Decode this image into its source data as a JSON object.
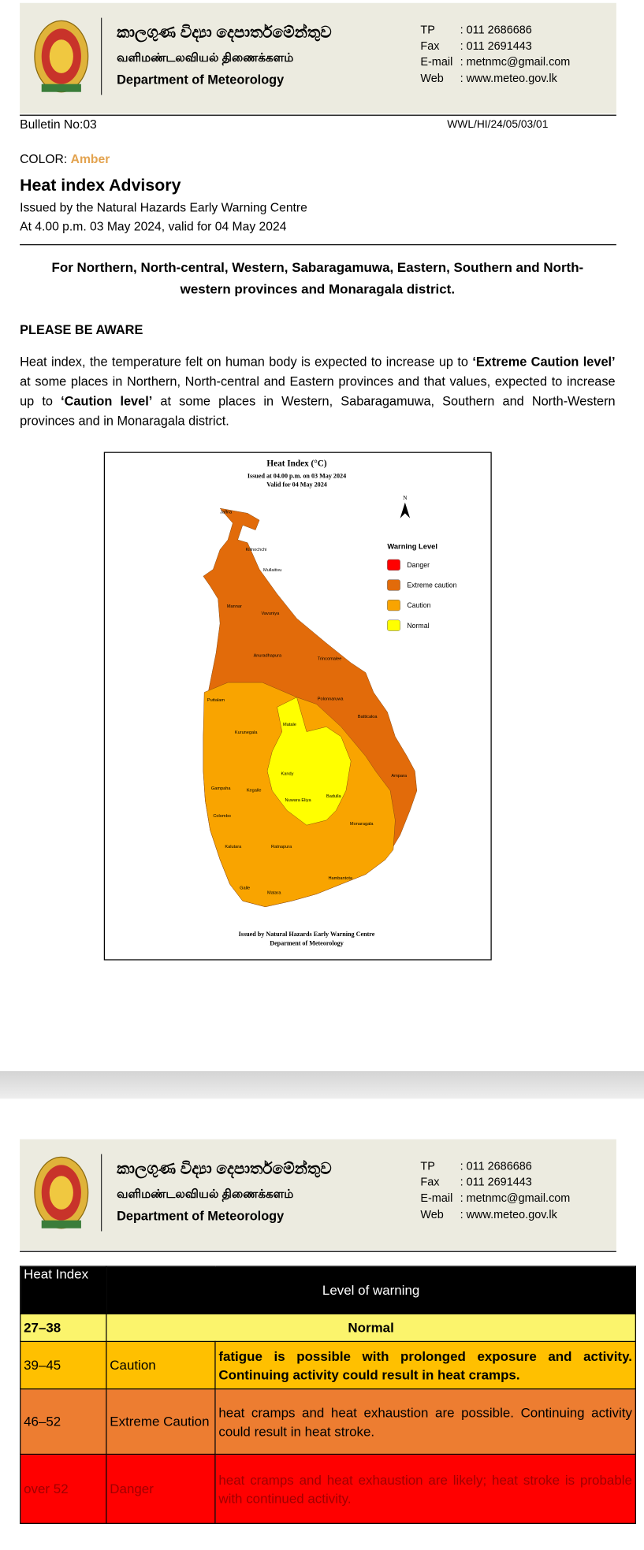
{
  "header": {
    "sinhala": "කාලගුණ විද්‍යා දෙපාර්තමේන්තුව",
    "tamil": "வளிமண்டலவியல் திணைக்களம்",
    "english": "Department of Meteorology",
    "contacts": [
      {
        "label": "TP",
        "value": ": 011 2686686"
      },
      {
        "label": "Fax",
        "value": ": 011 2691443"
      },
      {
        "label": "E-mail",
        "value": ": metnmc@gmail.com"
      },
      {
        "label": "Web",
        "value": ": www.meteo.gov.lk"
      }
    ]
  },
  "bulletin": {
    "number": "Bulletin No:03",
    "reference": "WWL/HI/24/05/03/01",
    "color_label": "COLOR:",
    "color_value": "Amber",
    "title": "Heat index Advisory",
    "issued_by": "Issued by the Natural Hazards Early Warning Centre",
    "issued_at": "At 4.00 p.m. 03 May 2024, valid for 04 May 2024",
    "regions": "For Northern, North-central, Western, Sabaragamuwa, Eastern, Southern and North-western provinces and Monaragala district.",
    "aware": "PLEASE BE AWARE",
    "body": [
      "Heat index, the temperature felt on human body is expected to increase up to ",
      "‘Extreme Caution level’",
      " at some places in Northern, North-central and Eastern provinces and that values, expected to increase up to ",
      "‘Caution level’",
      " at some places in Western, Sabaragamuwa, Southern and North-Western provinces and in Monaragala district."
    ]
  },
  "map": {
    "title": "Heat Index (°C)",
    "issued": "Issued at 04.00 p.m. on 03 May 2024",
    "valid": "Valid for 04 May 2024",
    "north": "N",
    "legend_title": "Warning Level",
    "legend": [
      {
        "label": "Danger",
        "color": "#ff0000"
      },
      {
        "label": "Extreme caution",
        "color": "#e26b0a"
      },
      {
        "label": "Caution",
        "color": "#f9a400"
      },
      {
        "label": "Normal",
        "color": "#ffff00"
      }
    ],
    "districts": [
      "Jaffna",
      "Kilinochchi",
      "Mullaitivu",
      "Mannar",
      "Vavuniya",
      "Trincomalee",
      "Anuradhapura",
      "Puttalam",
      "Polonnaruwa",
      "Matale",
      "Batticaloa",
      "Kurunegala",
      "Kandy",
      "Ampara",
      "Gampaha",
      "Kegalle",
      "Nuwara Eliya",
      "Badulla",
      "Colombo",
      "Monaragala",
      "Kalutara",
      "Ratnapura",
      "Hambantota",
      "Galle",
      "Matara"
    ],
    "footer": [
      "Issued by Natural Hazards Early Warning Centre",
      "Deparment of Meteorology"
    ]
  },
  "table": {
    "header": [
      "Heat Index",
      "Level of warning"
    ],
    "rows": [
      {
        "range": "27–38",
        "level": "Normal",
        "color": "#fbf46c"
      },
      {
        "range": "39–45",
        "level": "Caution",
        "description": "fatigue is possible with prolonged exposure and activity. Continuing activity could result in heat cramps.",
        "color": "#ffc000"
      },
      {
        "range": "46–52",
        "level": "Extreme Caution",
        "description": "heat cramps and heat exhaustion are possible. Continuing activity could result in heat stroke.",
        "color": "#ed7d31"
      },
      {
        "range": "over 52",
        "level": "Danger",
        "description": "heat cramps and heat exhaustion are likely; heat stroke is probable with continued activity.",
        "color": "#ff0000"
      }
    ]
  }
}
